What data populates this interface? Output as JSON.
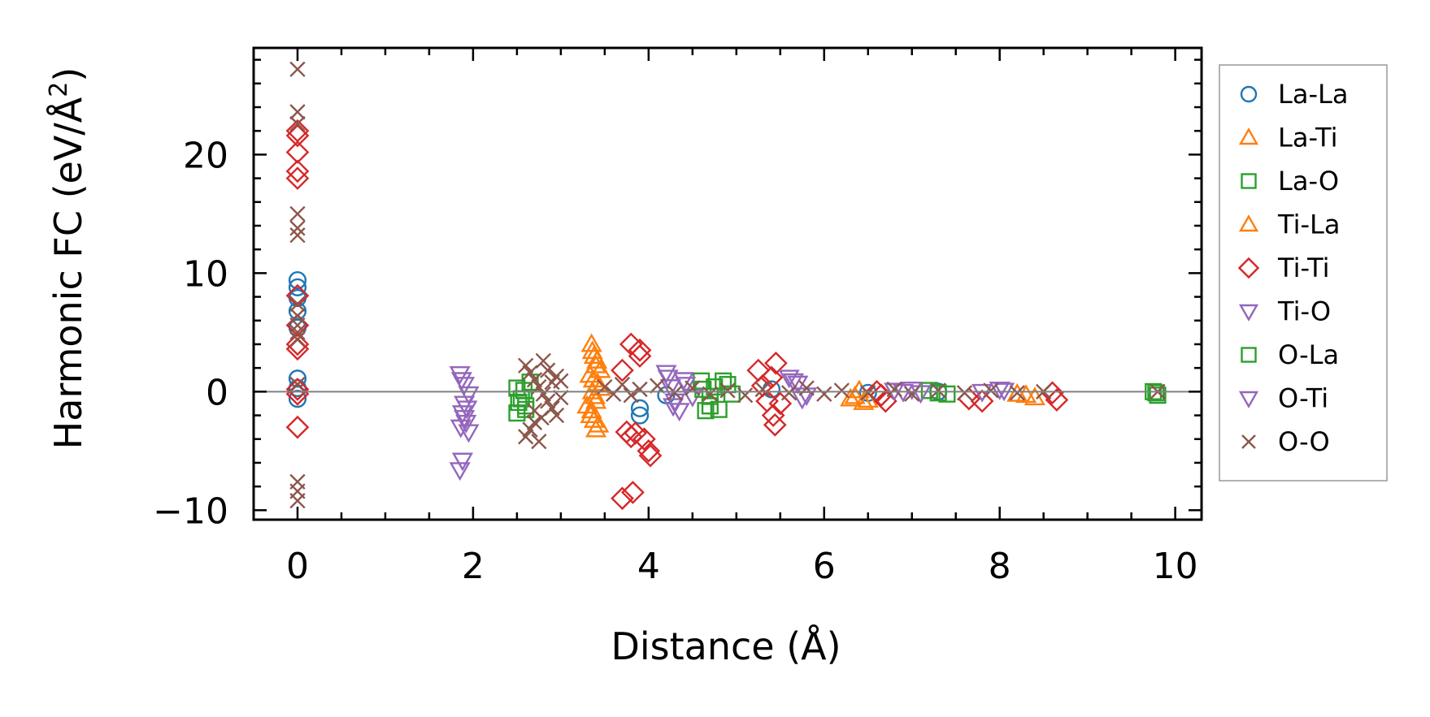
{
  "chart_data": {
    "type": "scatter",
    "title": "",
    "xlabel": "Distance (Å)",
    "ylabel_main": "Harmonic FC (eV/Å",
    "ylabel_sup": "2",
    "ylabel_close": ")",
    "xlim": [
      -0.5,
      10.3
    ],
    "ylim": [
      -10.8,
      29.0
    ],
    "xticks": [
      0,
      2,
      4,
      6,
      8,
      10
    ],
    "xtick_labels": [
      "0",
      "2",
      "4",
      "6",
      "8",
      "10"
    ],
    "yticks": [
      -10,
      0,
      10,
      20
    ],
    "ytick_labels": [
      "−10",
      "0",
      "10",
      "20"
    ],
    "zero_line": true,
    "grid": false,
    "legend_position": "outside-right",
    "series": [
      {
        "name": "La-La",
        "marker": "circle",
        "color": "#1f77b4",
        "points": [
          [
            0,
            9.4
          ],
          [
            0,
            8.8
          ],
          [
            0,
            7.9
          ],
          [
            0,
            6.8
          ],
          [
            0,
            5.4
          ],
          [
            0,
            1.1
          ],
          [
            0,
            0.3
          ],
          [
            0,
            -0.6
          ],
          [
            3.9,
            -2.0
          ],
          [
            3.9,
            -1.4
          ],
          [
            4.2,
            -0.3
          ],
          [
            5.4,
            0.2
          ],
          [
            6.5,
            -0.1
          ],
          [
            7.3,
            0.0
          ]
        ]
      },
      {
        "name": "La-Ti",
        "marker": "triangle-up",
        "color": "#ff7f0e",
        "points": [
          [
            3.35,
            4.0
          ],
          [
            3.38,
            3.0
          ],
          [
            3.4,
            2.2
          ],
          [
            3.33,
            1.4
          ],
          [
            3.42,
            0.7
          ],
          [
            3.36,
            0.0
          ],
          [
            3.4,
            -0.8
          ],
          [
            3.35,
            -1.6
          ],
          [
            3.38,
            -2.4
          ],
          [
            3.4,
            -3.2
          ],
          [
            3.45,
            1.8
          ],
          [
            3.3,
            -1.2
          ],
          [
            6.3,
            -0.6
          ],
          [
            6.4,
            0.1
          ],
          [
            6.45,
            -0.9
          ],
          [
            8.2,
            -0.2
          ],
          [
            8.4,
            -0.5
          ]
        ]
      },
      {
        "name": "La-O",
        "marker": "square",
        "color": "#2ca02c",
        "points": [
          [
            2.5,
            -1.8
          ],
          [
            2.55,
            -0.6
          ],
          [
            2.5,
            0.3
          ],
          [
            2.6,
            -1.2
          ],
          [
            2.65,
            0.8
          ],
          [
            4.6,
            0.9
          ],
          [
            4.65,
            -1.6
          ],
          [
            4.7,
            -0.4
          ],
          [
            4.75,
            0.4
          ],
          [
            4.8,
            -1.5
          ],
          [
            4.9,
            0.6
          ],
          [
            4.95,
            -0.2
          ],
          [
            7.2,
            0.1
          ],
          [
            7.4,
            -0.2
          ],
          [
            9.75,
            0.0
          ],
          [
            9.8,
            -0.3
          ]
        ]
      },
      {
        "name": "Ti-La",
        "marker": "triangle-up",
        "color": "#ff7f0e",
        "points": [
          [
            3.36,
            3.4
          ],
          [
            3.41,
            2.6
          ],
          [
            3.37,
            1.0
          ],
          [
            3.39,
            -0.4
          ],
          [
            3.34,
            -2.0
          ],
          [
            3.43,
            -2.8
          ],
          [
            3.45,
            0.3
          ],
          [
            6.35,
            -0.4
          ],
          [
            6.5,
            -0.7
          ],
          [
            8.3,
            -0.3
          ]
        ]
      },
      {
        "name": "Ti-Ti",
        "marker": "diamond",
        "color": "#d62728",
        "points": [
          [
            0,
            22.0
          ],
          [
            0,
            21.6
          ],
          [
            0,
            20.2
          ],
          [
            0,
            18.6
          ],
          [
            0,
            18.0
          ],
          [
            0,
            8.1
          ],
          [
            0,
            5.6
          ],
          [
            0,
            4.0
          ],
          [
            0,
            3.6
          ],
          [
            0,
            0.2
          ],
          [
            0,
            -0.2
          ],
          [
            0,
            -3.0
          ],
          [
            3.7,
            1.8
          ],
          [
            3.75,
            -3.4
          ],
          [
            3.8,
            -3.8
          ],
          [
            3.8,
            4.0
          ],
          [
            3.9,
            3.5
          ],
          [
            3.9,
            3.0
          ],
          [
            3.85,
            -3.5
          ],
          [
            3.95,
            -4.0
          ],
          [
            4.0,
            -5.0
          ],
          [
            4.02,
            -5.4
          ],
          [
            3.7,
            -9.0
          ],
          [
            3.82,
            -8.5
          ],
          [
            5.25,
            1.8
          ],
          [
            5.3,
            0.5
          ],
          [
            5.35,
            -0.8
          ],
          [
            5.4,
            1.2
          ],
          [
            5.45,
            2.4
          ],
          [
            5.42,
            -2.0
          ],
          [
            5.44,
            -2.8
          ],
          [
            5.5,
            -1.0
          ],
          [
            6.6,
            0.0
          ],
          [
            6.7,
            -0.8
          ],
          [
            6.65,
            -0.3
          ],
          [
            7.65,
            -0.6
          ],
          [
            7.8,
            -0.8
          ],
          [
            8.6,
            -0.1
          ],
          [
            8.65,
            -0.7
          ]
        ]
      },
      {
        "name": "Ti-O",
        "marker": "triangle-down",
        "color": "#9467bd",
        "points": [
          [
            1.85,
            1.5
          ],
          [
            1.9,
            0.6
          ],
          [
            1.95,
            -0.2
          ],
          [
            1.9,
            -1.0
          ],
          [
            1.88,
            -1.8
          ],
          [
            1.92,
            -2.6
          ],
          [
            1.95,
            -3.4
          ],
          [
            1.85,
            -6.6
          ],
          [
            1.88,
            -5.8
          ],
          [
            4.2,
            1.6
          ],
          [
            4.25,
            0.4
          ],
          [
            4.3,
            -0.8
          ],
          [
            4.35,
            -1.6
          ],
          [
            4.4,
            1.0
          ],
          [
            4.5,
            -0.4
          ],
          [
            5.6,
            1.2
          ],
          [
            5.7,
            0.7
          ],
          [
            5.8,
            -0.3
          ],
          [
            6.8,
            0.1
          ],
          [
            7.0,
            0.2
          ],
          [
            7.8,
            0.0
          ],
          [
            8.0,
            0.2
          ]
        ]
      },
      {
        "name": "O-La",
        "marker": "square",
        "color": "#2ca02c",
        "points": [
          [
            2.52,
            -0.9
          ],
          [
            2.58,
            0.1
          ],
          [
            2.6,
            -1.5
          ],
          [
            4.62,
            0.2
          ],
          [
            4.7,
            -1.2
          ],
          [
            4.85,
            0.9
          ],
          [
            7.3,
            -0.1
          ],
          [
            9.78,
            -0.1
          ]
        ]
      },
      {
        "name": "O-Ti",
        "marker": "triangle-down",
        "color": "#9467bd",
        "points": [
          [
            1.87,
            1.0
          ],
          [
            1.93,
            -1.4
          ],
          [
            1.9,
            -2.2
          ],
          [
            1.86,
            -3.0
          ],
          [
            4.22,
            1.2
          ],
          [
            4.28,
            -1.2
          ],
          [
            4.42,
            0.6
          ],
          [
            5.65,
            0.9
          ],
          [
            5.75,
            -0.6
          ],
          [
            6.9,
            0.0
          ],
          [
            7.1,
            -0.1
          ],
          [
            8.05,
            0.1
          ]
        ]
      },
      {
        "name": "O-O",
        "marker": "x",
        "color": "#8c564b",
        "points": [
          [
            0,
            27.2
          ],
          [
            0,
            23.6
          ],
          [
            0,
            22.6
          ],
          [
            0,
            15.0
          ],
          [
            0,
            13.8
          ],
          [
            0,
            13.2
          ],
          [
            0,
            7.4
          ],
          [
            0,
            6.4
          ],
          [
            0,
            5.6
          ],
          [
            0,
            5.0
          ],
          [
            0,
            4.4
          ],
          [
            0,
            0.6
          ],
          [
            0,
            -7.6
          ],
          [
            0,
            -8.4
          ],
          [
            0,
            -9.2
          ],
          [
            2.6,
            2.2
          ],
          [
            2.65,
            1.6
          ],
          [
            2.7,
            1.0
          ],
          [
            2.75,
            0.4
          ],
          [
            2.8,
            -0.2
          ],
          [
            2.85,
            -0.8
          ],
          [
            2.9,
            -1.4
          ],
          [
            2.95,
            -2.0
          ],
          [
            2.7,
            -2.6
          ],
          [
            2.65,
            -3.2
          ],
          [
            2.6,
            -3.8
          ],
          [
            2.75,
            -4.2
          ],
          [
            2.8,
            2.6
          ],
          [
            2.9,
            0.8
          ],
          [
            2.85,
            1.8
          ],
          [
            2.7,
            -1.6
          ],
          [
            2.78,
            -2.2
          ],
          [
            3.0,
            -0.5
          ],
          [
            3.0,
            0.9
          ],
          [
            2.95,
            1.3
          ],
          [
            3.5,
            0.4
          ],
          [
            3.6,
            -0.2
          ],
          [
            3.7,
            0.6
          ],
          [
            3.8,
            -0.3
          ],
          [
            3.9,
            0.2
          ],
          [
            4.1,
            0.5
          ],
          [
            4.3,
            -0.1
          ],
          [
            4.5,
            0.3
          ],
          [
            4.7,
            -0.2
          ],
          [
            4.9,
            0.1
          ],
          [
            5.1,
            -0.3
          ],
          [
            5.3,
            0.2
          ],
          [
            5.6,
            -0.1
          ],
          [
            5.8,
            0.3
          ],
          [
            6.0,
            -0.2
          ],
          [
            6.2,
            0.1
          ],
          [
            6.5,
            -0.1
          ],
          [
            6.8,
            0.2
          ],
          [
            7.0,
            -0.2
          ],
          [
            7.3,
            0.1
          ],
          [
            7.6,
            -0.1
          ],
          [
            7.9,
            0.1
          ],
          [
            8.2,
            -0.1
          ],
          [
            8.5,
            0.0
          ],
          [
            9.8,
            0.0
          ]
        ]
      }
    ]
  }
}
